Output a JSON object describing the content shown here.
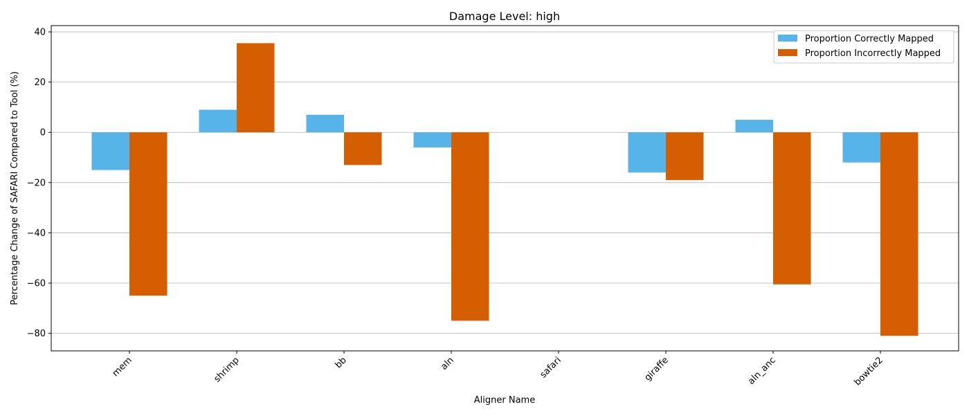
{
  "chart_data": {
    "type": "bar",
    "title": "Damage Level: high",
    "xlabel": "Aligner Name",
    "ylabel": "Percentage Change of SAFARI Compared to Tool (%)",
    "categories": [
      "mem",
      "shrimp",
      "bb",
      "aln",
      "safari",
      "giraffe",
      "aln_anc",
      "bowtie2"
    ],
    "series": [
      {
        "name": "Proportion Correctly Mapped",
        "color": "#56B4E9",
        "values": [
          -15,
          9,
          7,
          -6,
          0,
          -16,
          5,
          -12
        ]
      },
      {
        "name": "Proportion Incorrectly Mapped",
        "color": "#D55E00",
        "values": [
          -65,
          35.5,
          -13,
          -75,
          0,
          -19,
          -60.5,
          -81
        ]
      }
    ],
    "ylim": [
      -87,
      42.5
    ],
    "yticks": [
      40,
      20,
      0,
      -20,
      -40,
      -60,
      -80
    ],
    "ytick_labels": [
      "40",
      "20",
      "0",
      "−20",
      "−40",
      "−60",
      "−80"
    ],
    "grid": "y",
    "legend": "top-right"
  }
}
